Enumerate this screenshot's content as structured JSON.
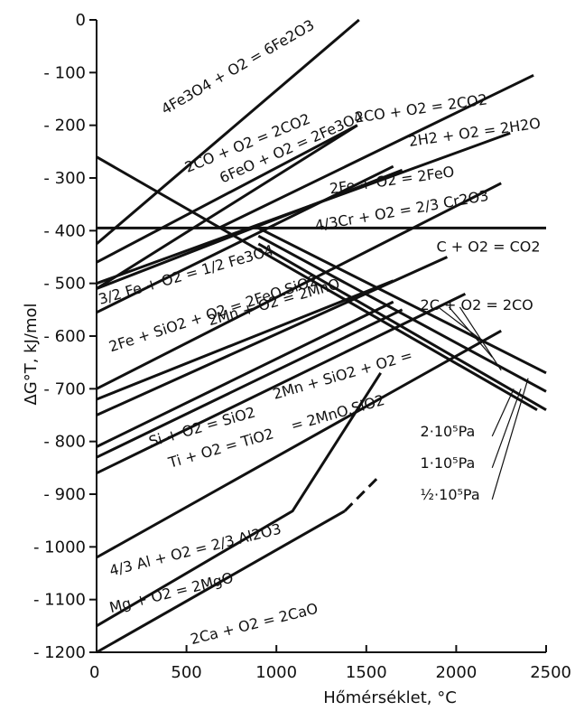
{
  "chart_data": {
    "type": "line",
    "xlabel": "Hőmérséklet, °C",
    "ylabel": "ΔG°T, kJ/mol",
    "xlim": [
      0,
      2500
    ],
    "ylim": [
      -1200,
      0
    ],
    "x_ticks": [
      "0",
      "500",
      "1000",
      "1500",
      "2000",
      "2500"
    ],
    "y_ticks": [
      "0",
      "- 100",
      "- 200",
      "- 300",
      "- 400",
      "- 500",
      "- 600",
      "- 700",
      "- 800",
      "- 900",
      "- 1000",
      "- 1100",
      "- 1200"
    ],
    "series": [
      {
        "name": "4Fe3O4 + O2 = 6Fe2O3",
        "points": [
          [
            0,
            -425
          ],
          [
            1460,
            0
          ]
        ]
      },
      {
        "name": "2CO + O2 = 2CO2",
        "points": [
          [
            0,
            -260
          ],
          [
            2450,
            -740
          ]
        ]
      },
      {
        "name": "2CO + O2 = 2CO2",
        "points": [
          [
            0,
            -510
          ],
          [
            1450,
            -200
          ]
        ]
      },
      {
        "name": "6FeO + O2 = 2Fe3O4",
        "points": [
          [
            0,
            -460
          ],
          [
            1450,
            -200
          ]
        ]
      },
      {
        "name": "2CO + O2 = 2CO2",
        "points": [
          [
            680,
            -395
          ],
          [
            2430,
            -105
          ]
        ]
      },
      {
        "name": "2H2 + O2 = 2H2O",
        "points": [
          [
            0,
            -500
          ],
          [
            2300,
            -215
          ]
        ]
      },
      {
        "name": "2Fe + O2 = 2FeO",
        "points": [
          [
            0,
            -510
          ],
          [
            1700,
            -285
          ]
        ]
      },
      {
        "name": "3/2 Fe + O2 = 1/2 Fe3O4",
        "points": [
          [
            0,
            -555
          ],
          [
            1650,
            -278
          ]
        ]
      },
      {
        "name": "4/3 Cr + O2 = 2/3 Cr2O3",
        "points": [
          [
            0,
            -700
          ],
          [
            2250,
            -310
          ]
        ]
      },
      {
        "name": "C + O2 = CO2",
        "points": [
          [
            0,
            -395
          ],
          [
            2500,
            -395
          ]
        ]
      },
      {
        "name": "2Fe + SiO2 + O2 = 2FeO.SiO2",
        "points": [
          [
            0,
            -720
          ],
          [
            1650,
            -495
          ]
        ]
      },
      {
        "name": "2Mn + O2 = 2MnO",
        "points": [
          [
            0,
            -750
          ],
          [
            1950,
            -450
          ]
        ]
      },
      {
        "name": "2Mn + SiO2 + O2 = 2MnO.SiO2",
        "points": [
          [
            0,
            -810
          ],
          [
            1650,
            -535
          ]
        ]
      },
      {
        "name": "Si + O2 = SiO2",
        "points": [
          [
            0,
            -830
          ],
          [
            1700,
            -550
          ]
        ]
      },
      {
        "name": "Ti + O2 = TiO2",
        "points": [
          [
            0,
            -860
          ],
          [
            2050,
            -520
          ]
        ]
      },
      {
        "name": "4/3 Al + O2 = 2/3 Al2O3",
        "points": [
          [
            0,
            -1020
          ],
          [
            2250,
            -590
          ]
        ]
      },
      {
        "name": "Mg + O2 = 2MgO",
        "points": [
          [
            0,
            -1150
          ],
          [
            1090,
            -932
          ],
          [
            1580,
            -670
          ]
        ]
      },
      {
        "name": "2Ca + O2 = 2CaO",
        "points": [
          [
            0,
            -1200
          ],
          [
            1380,
            -932
          ]
        ]
      },
      {
        "name": "2Ca + O2 = 2CaO",
        "dashed": true,
        "points": [
          [
            1380,
            -932
          ],
          [
            1560,
            -870
          ]
        ]
      },
      {
        "name": "2C + O2 = 2CO (2·10^5 Pa)",
        "points": [
          [
            900,
            -425
          ],
          [
            2500,
            -740
          ]
        ]
      },
      {
        "name": "2C + O2 = 2CO (1·10^5 Pa)",
        "points": [
          [
            900,
            -410
          ],
          [
            2500,
            -705
          ]
        ]
      },
      {
        "name": "2C + O2 = 2CO (1/2·10^5 Pa)",
        "points": [
          [
            900,
            -395
          ],
          [
            2500,
            -670
          ]
        ]
      }
    ],
    "labels": [
      {
        "text": "4Fe3O4 + O2 = 6Fe2O3",
        "x": 380,
        "y": -180,
        "angle": -30
      },
      {
        "text": "2CO + O2 = 2CO2",
        "x": 505,
        "y": -290,
        "angle": -22
      },
      {
        "text": "6FeO + O2 = 2Fe3O4",
        "x": 700,
        "y": -310,
        "angle": -24
      },
      {
        "text": "2CO + O2 = 2CO2",
        "x": 1440,
        "y": -195,
        "angle": -8
      },
      {
        "text": "2H2 + O2 = 2H2O",
        "x": 1740,
        "y": -240,
        "angle": -8
      },
      {
        "text": "2Fe + O2 = 2FeO",
        "x": 1300,
        "y": -330,
        "angle": -8
      },
      {
        "text": "4/3Cr + O2 = 2/3 Cr2O3",
        "x": 1220,
        "y": -400,
        "angle": -10
      },
      {
        "text": "C + O2 = CO2",
        "x": 1890,
        "y": -440,
        "angle": 0
      },
      {
        "text": "3/2 Fe + O2 = 1/2 Fe3O4",
        "x": 20,
        "y": -540,
        "angle": -16
      },
      {
        "text": "2Fe + SiO2 + O2 = 2FeO.SiO2",
        "x": 80,
        "y": -630,
        "angle": -18
      },
      {
        "text": "2Mn + O2 = 2MnO",
        "x": 630,
        "y": -580,
        "angle": -16
      },
      {
        "text": "2C + O2 = 2CO",
        "x": 1800,
        "y": -550,
        "angle": 0
      },
      {
        "text": "2Mn + SiO2 + O2 =",
        "x": 990,
        "y": -720,
        "angle": -16
      },
      {
        "text": "= 2MnO.SiO2",
        "x": 1090,
        "y": -780,
        "angle": -16
      },
      {
        "text": "Si + O2 = SiO2",
        "x": 300,
        "y": -810,
        "angle": -16
      },
      {
        "text": "Ti + O2 = TiO2",
        "x": 410,
        "y": -850,
        "angle": -16
      },
      {
        "text": "2·10⁵Pa",
        "x": 1800,
        "y": -790,
        "angle": 0
      },
      {
        "text": "1·10⁵Pa",
        "x": 1800,
        "y": -850,
        "angle": 0
      },
      {
        "text": "½·10⁵Pa",
        "x": 1800,
        "y": -910,
        "angle": 0
      },
      {
        "text": "4/3 Al + O2 = 2/3 Al2O3",
        "x": 80,
        "y": -1055,
        "angle": -14
      },
      {
        "text": "Mg + O2 = 2MgO",
        "x": 80,
        "y": -1125,
        "angle": -14
      },
      {
        "text": "2Ca + O2 = 2CaO",
        "x": 530,
        "y": -1185,
        "angle": -14
      }
    ]
  }
}
